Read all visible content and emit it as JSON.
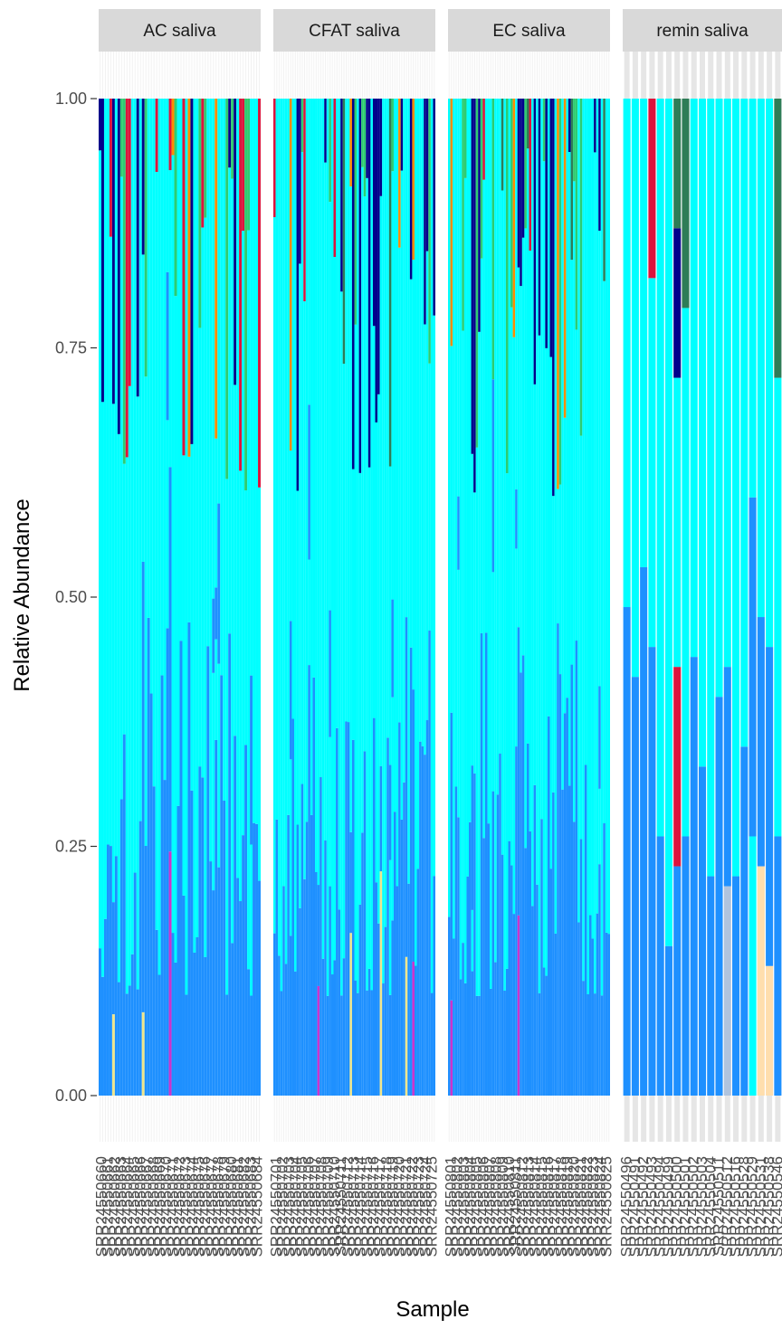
{
  "chart_data": {
    "type": "bar",
    "stacked": true,
    "xlabel": "Sample",
    "ylabel": "Relative Abundance",
    "ylim": [
      0,
      1
    ],
    "yticks": [
      "0.00",
      "0.25",
      "0.50",
      "0.75",
      "1.00"
    ],
    "legend": "none",
    "colors": {
      "dodger": "#1e90ff",
      "cyan": "#00ffff",
      "crimson": "#dc143c",
      "navy": "#00008b",
      "darkgreen": "#2e7d57",
      "green": "#2ecc71",
      "orange": "#ff8c00",
      "khaki": "#f0e68c",
      "violet": "#cc33cc",
      "bisque": "#ffdead",
      "lightsteel": "#b0c4de"
    },
    "facets": [
      {
        "label": "AC saliva",
        "bar_count": 60,
        "note_values": "representative: lower blue segment 0.12-0.45, cyan segment to ~0.8-1.0, thin accent taxa at top",
        "sample_labels": [
          "SRR24550660",
          "SRR24550661",
          "SRR24550662",
          "SRR24550663",
          "SRR24550664",
          "SRR24550665",
          "SRR24550666",
          "SRR24550667",
          "SRR24550668",
          "SRR24550669",
          "SRR24550670",
          "SRR24550671",
          "SRR24550672",
          "SRR24550673",
          "SRR24550674",
          "SRR24550675",
          "SRR24550676",
          "SRR24550677",
          "SRR24550678",
          "SRR24550679",
          "SRR24550680",
          "SRR24550681",
          "SRR24550682",
          "SRR24550683",
          "SRR24550684"
        ]
      },
      {
        "label": "CFAT saliva",
        "bar_count": 70,
        "sample_labels": [
          "SRR24550701",
          "SRR24550702",
          "SRR24550703",
          "SRR24550704",
          "SRR24550705",
          "SRR24550706",
          "SRR24550707",
          "SRR24550708",
          "SRR24550709",
          "SRR24550710",
          "SRR24550711",
          "SRR24550712",
          "SRR24550713",
          "SRR24550714",
          "SRR24550715",
          "SRR24550716",
          "SRR24550717",
          "SRR24550718",
          "SRR24550719",
          "SRR24550720",
          "SRR24550721",
          "SRR24550722",
          "SRR24550723",
          "SRR24550724",
          "SRR24550725"
        ]
      },
      {
        "label": "EC saliva",
        "bar_count": 70,
        "sample_labels": [
          "SRR24550801",
          "SRR24550802",
          "SRR24550803",
          "SRR24550804",
          "SRR24550805",
          "SRR24550806",
          "SRR24550807",
          "SRR24550808",
          "SRR24550809",
          "SRR24550810",
          "SRR24550811",
          "SRR24550812",
          "SRR24550813",
          "SRR24550814",
          "SRR24550815",
          "SRR24550816",
          "SRR24550817",
          "SRR24550818",
          "SRR24550819",
          "SRR24550820",
          "SRR24550821",
          "SRR24550822",
          "SRR24550823",
          "SRR24550824",
          "SRR24550825"
        ]
      },
      {
        "label": "remin saliva",
        "bars": [
          [
            [
              "dodger",
              0.49
            ],
            [
              "cyan",
              0.51
            ]
          ],
          [
            [
              "dodger",
              0.42
            ],
            [
              "cyan",
              0.58
            ]
          ],
          [
            [
              "dodger",
              0.53
            ],
            [
              "cyan",
              0.47
            ]
          ],
          [
            [
              "dodger",
              0.45
            ],
            [
              "cyan",
              0.37
            ],
            [
              "crimson",
              0.18
            ]
          ],
          [
            [
              "dodger",
              0.26
            ],
            [
              "cyan",
              0.74
            ]
          ],
          [
            [
              "dodger",
              0.15
            ],
            [
              "cyan",
              0.85
            ]
          ],
          [
            [
              "dodger",
              0.23
            ],
            [
              "crimson",
              0.2
            ],
            [
              "cyan",
              0.29
            ],
            [
              "navy",
              0.15
            ],
            [
              "darkgreen",
              0.13
            ]
          ],
          [
            [
              "dodger",
              0.26
            ],
            [
              "cyan",
              0.53
            ],
            [
              "darkgreen",
              0.21
            ]
          ],
          [
            [
              "dodger",
              0.44
            ],
            [
              "cyan",
              0.56
            ]
          ],
          [
            [
              "dodger",
              0.33
            ],
            [
              "cyan",
              0.67
            ]
          ],
          [
            [
              "dodger",
              0.22
            ],
            [
              "cyan",
              0.78
            ]
          ],
          [
            [
              "dodger",
              0.4
            ],
            [
              "cyan",
              0.6
            ]
          ],
          [
            [
              "lightsteel",
              0.21
            ],
            [
              "dodger",
              0.22
            ],
            [
              "cyan",
              0.57
            ]
          ],
          [
            [
              "dodger",
              0.22
            ],
            [
              "cyan",
              0.78
            ]
          ],
          [
            [
              "dodger",
              0.35
            ],
            [
              "cyan",
              0.65
            ]
          ],
          [
            [
              "cyan",
              0.26
            ],
            [
              "dodger",
              0.34
            ],
            [
              "cyan",
              0.4
            ]
          ],
          [
            [
              "bisque",
              0.23
            ],
            [
              "dodger",
              0.25
            ],
            [
              "cyan",
              0.52
            ]
          ],
          [
            [
              "bisque",
              0.13
            ],
            [
              "dodger",
              0.32
            ],
            [
              "cyan",
              0.55
            ]
          ],
          [
            [
              "dodger",
              0.26
            ],
            [
              "cyan",
              0.46
            ],
            [
              "darkgreen",
              0.28
            ]
          ]
        ],
        "sample_labels": [
          "SRR24550496",
          "SRR24550491",
          "SRR24550492",
          "SRR24550493",
          "SRR24550494",
          "SRR24550499",
          "SRR24550500",
          "SRR24550501",
          "SRR24550502",
          "SRR24550503",
          "SRR24550504",
          "SRR24550511",
          "SRR24550512",
          "SRR24550516",
          "SRR24550528",
          "SRR24550529",
          "SRR24550531",
          "SRR24550538",
          "SRR24550546"
        ]
      }
    ]
  }
}
